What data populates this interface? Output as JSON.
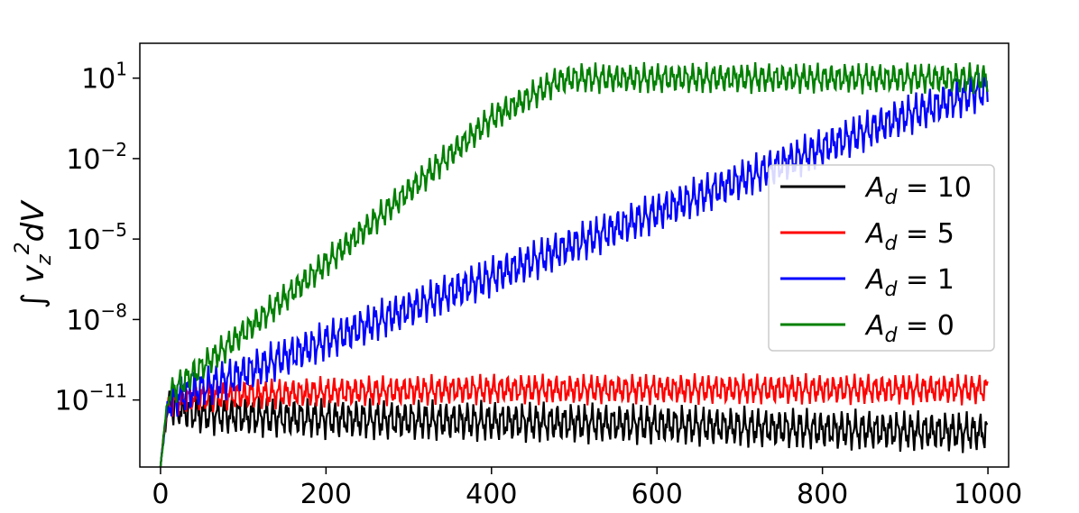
{
  "chart_data": {
    "type": "line",
    "ylabel": "∫ v_z² dV",
    "xlabel": "",
    "xlim": [
      -25,
      1025
    ],
    "ylim_log10": [
      -13.5,
      2.3
    ],
    "yscale": "log",
    "grid": false,
    "legend_position": "center-right",
    "x_ticks": [
      {
        "value": 0,
        "label": "0"
      },
      {
        "value": 200,
        "label": "200"
      },
      {
        "value": 400,
        "label": "400"
      },
      {
        "value": 600,
        "label": "600"
      },
      {
        "value": 800,
        "label": "800"
      },
      {
        "value": 1000,
        "label": "1000"
      }
    ],
    "y_ticks": [
      {
        "log10": 1,
        "base": "10",
        "exp": "1"
      },
      {
        "log10": -2,
        "base": "10",
        "exp": "−2"
      },
      {
        "log10": -5,
        "base": "10",
        "exp": "−5"
      },
      {
        "log10": -8,
        "base": "10",
        "exp": "−8"
      },
      {
        "log10": -11,
        "base": "10",
        "exp": "−11"
      }
    ],
    "series": [
      {
        "name": "A_d = 10",
        "legend_parts": {
          "var": "A",
          "sub": "d",
          "rest": " = 10"
        },
        "color": "#000000",
        "x": [
          0,
          5,
          10,
          20,
          40,
          100,
          200,
          400,
          600,
          800,
          1000
        ],
        "log10_y_mean": [
          -13.5,
          -12.0,
          -11.2,
          -11.3,
          -11.5,
          -11.6,
          -11.7,
          -11.8,
          -11.9,
          -12.1,
          -12.2
        ],
        "oscillation_amplitude_log10": 0.8
      },
      {
        "name": "A_d = 5",
        "legend_parts": {
          "var": "A",
          "sub": "d",
          "rest": " = 5"
        },
        "color": "#ff0000",
        "x": [
          0,
          5,
          10,
          20,
          40,
          100,
          200,
          400,
          600,
          800,
          1000
        ],
        "log10_y_mean": [
          -13.5,
          -12.0,
          -11.2,
          -11.1,
          -10.9,
          -10.8,
          -10.7,
          -10.6,
          -10.6,
          -10.6,
          -10.6
        ],
        "oscillation_amplitude_log10": 0.6
      },
      {
        "name": "A_d = 1",
        "legend_parts": {
          "var": "A",
          "sub": "d",
          "rest": " = 1"
        },
        "color": "#0000ff",
        "x": [
          0,
          5,
          10,
          20,
          100,
          200,
          300,
          400,
          500,
          600,
          700,
          800,
          900,
          1000
        ],
        "log10_y_mean": [
          -13.5,
          -12.0,
          -11.2,
          -10.9,
          -10.0,
          -8.8,
          -7.6,
          -6.4,
          -5.2,
          -4.0,
          -2.8,
          -1.6,
          -0.4,
          0.6
        ],
        "oscillation_amplitude_log10": 0.8
      },
      {
        "name": "A_d = 0",
        "legend_parts": {
          "var": "A",
          "sub": "d",
          "rest": " = 0"
        },
        "color": "#008000",
        "x": [
          0,
          5,
          10,
          20,
          100,
          200,
          300,
          400,
          480,
          500,
          600,
          700,
          800,
          900,
          1000
        ],
        "log10_y_mean": [
          -13.5,
          -12.0,
          -10.8,
          -10.5,
          -8.5,
          -5.9,
          -3.2,
          -0.5,
          0.9,
          1.0,
          1.0,
          1.0,
          1.0,
          1.0,
          1.0
        ],
        "oscillation_amplitude_log10": 0.6
      }
    ]
  }
}
